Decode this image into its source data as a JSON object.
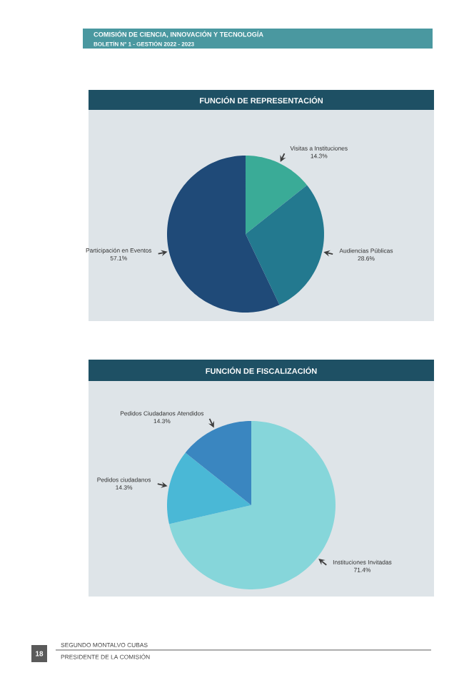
{
  "chart_data": [
    {
      "type": "pie",
      "title": "FUNCIÓN DE REPRESENTACIÓN",
      "categories": [
        "Visitas a Instituciones",
        "Audiencias Públicas",
        "Participación en Eventos"
      ],
      "values": [
        14.3,
        28.6,
        57.1
      ],
      "value_labels": [
        "14.3%",
        "28.6%",
        "57.1%"
      ],
      "colors": [
        "#3aab97",
        "#23798f",
        "#1f4a78"
      ],
      "annotations": [
        "COMISIÓN DE CIENCIA, INNOVACIÓN Y TECNOLOGÍA",
        "BOLETÍN N° 1 - GESTIÓN 2022 - 2023"
      ]
    },
    {
      "type": "pie",
      "title": "FUNCIÓN DE FISCALIZACIÓN",
      "categories": [
        "Instituciones Invitadas",
        "Pedidos ciudadanos",
        "Pedidos Ciudadanos Atendidos"
      ],
      "values": [
        71.4,
        14.3,
        14.3
      ],
      "value_labels": [
        "71.4%",
        "14.3%",
        "14.3%"
      ],
      "colors": [
        "#86d6da",
        "#4ab8d6",
        "#3a86c0"
      ],
      "annotations": [
        "18",
        "SEGUNDO MONTALVO CUBAS",
        "PRESIDENTE DE LA COMISIÓN"
      ]
    }
  ]
}
